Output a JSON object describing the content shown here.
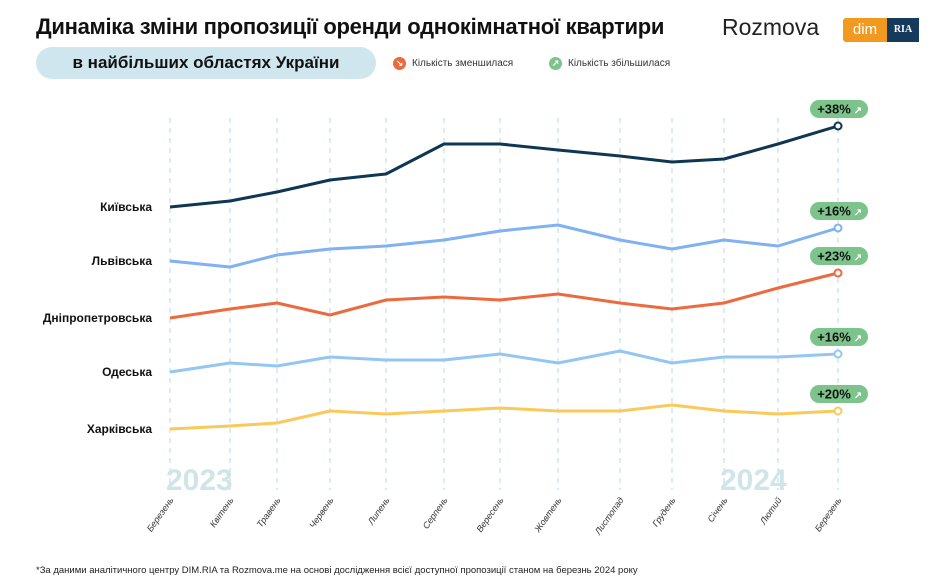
{
  "header": {
    "title": "Динаміка зміни пропозиції оренди однокімнатної квартири",
    "subtitle": "в найбільших областях України",
    "brand": "Rozmova",
    "logo_dim": "dim",
    "logo_ria": "RIA"
  },
  "legend": [
    {
      "label": "Кількість зменшилася",
      "color": "#ec6a3e",
      "icon": "arrow-down-right-icon"
    },
    {
      "label": "Кількість збільшилася",
      "color": "#7cc48c",
      "icon": "arrow-up-right-icon"
    }
  ],
  "footnote": "*За даними аналітичного центру DIM.RIA та Rozmova.me на основі дослідження всієї доступної пропозиції станом на березнь 2024 року",
  "chart_data": {
    "type": "line",
    "categories": [
      "Березень",
      "Квітень",
      "Травень",
      "Червень",
      "Липень",
      "Серпень",
      "Вересень",
      "Жовтень",
      "Листопад",
      "Грудень",
      "Січень",
      "Лютий",
      "Березень"
    ],
    "year_labels": [
      {
        "label": "2023",
        "at": "Березень"
      },
      {
        "label": "2024",
        "at": "Січень"
      }
    ],
    "grid": "vertical dashed",
    "y_axis": "none (relative index)",
    "series": [
      {
        "name": "Київська",
        "color": "#0f3653",
        "badge": "+38%",
        "values": [
          81,
          83,
          86,
          90,
          92,
          102,
          102,
          100,
          98,
          96,
          97,
          102,
          108
        ]
      },
      {
        "name": "Львівська",
        "color": "#7fb1f3",
        "badge": "+16%",
        "values": [
          63,
          61,
          65,
          67,
          68,
          70,
          73,
          75,
          70,
          67,
          70,
          68,
          74
        ]
      },
      {
        "name": "Дніпропетровська",
        "color": "#ec6a3e",
        "badge": "+23%",
        "values": [
          44,
          47,
          49,
          45,
          50,
          51,
          50,
          52,
          49,
          47,
          49,
          54,
          59
        ]
      },
      {
        "name": "Одеська",
        "color": "#93c7f2",
        "badge": "+16%",
        "values": [
          26,
          29,
          28,
          31,
          30,
          30,
          32,
          29,
          33,
          29,
          31,
          31,
          32
        ]
      },
      {
        "name": "Харківська",
        "color": "#f9c95a",
        "badge": "+20%",
        "values": [
          7,
          8,
          9,
          13,
          12,
          13,
          14,
          13,
          13,
          15,
          13,
          12,
          13
        ]
      }
    ]
  }
}
